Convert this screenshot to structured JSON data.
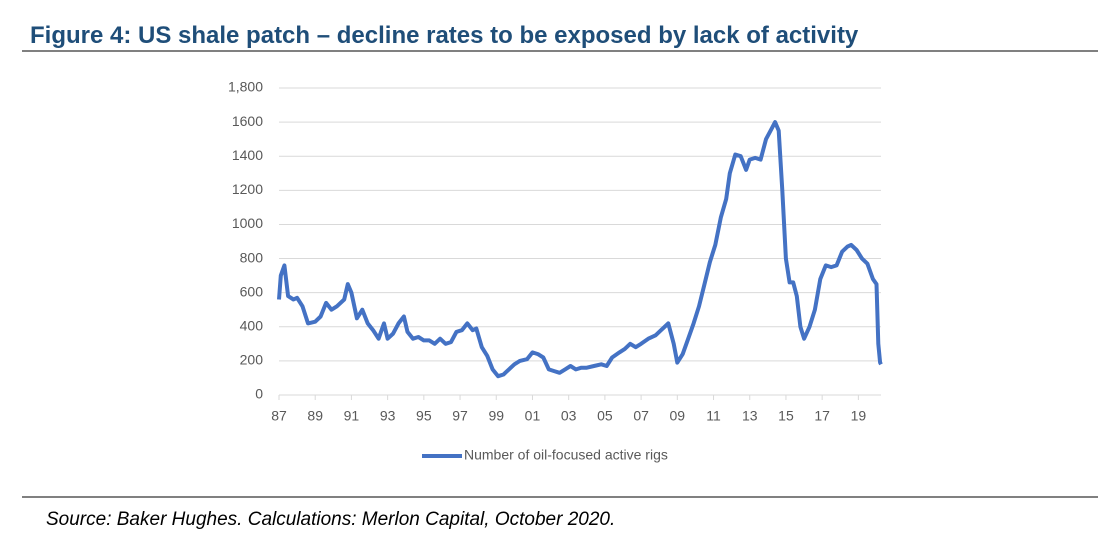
{
  "chart_data": {
    "type": "line",
    "title": "Figure 4: US shale patch – decline rates to be exposed by lack of activity",
    "source": "Source: Baker Hughes. Calculations: Merlon Capital, October 2020.",
    "xlim": [
      1987,
      2020.25
    ],
    "xticks": [
      {
        "value": 1987,
        "label": "87"
      },
      {
        "value": 1989,
        "label": "89"
      },
      {
        "value": 1991,
        "label": "91"
      },
      {
        "value": 1993,
        "label": "93"
      },
      {
        "value": 1995,
        "label": "95"
      },
      {
        "value": 1997,
        "label": "97"
      },
      {
        "value": 1999,
        "label": "99"
      },
      {
        "value": 2001,
        "label": "01"
      },
      {
        "value": 2003,
        "label": "03"
      },
      {
        "value": 2005,
        "label": "05"
      },
      {
        "value": 2007,
        "label": "07"
      },
      {
        "value": 2009,
        "label": "09"
      },
      {
        "value": 2011,
        "label": "11"
      },
      {
        "value": 2013,
        "label": "13"
      },
      {
        "value": 2015,
        "label": "15"
      },
      {
        "value": 2017,
        "label": "17"
      },
      {
        "value": 2019,
        "label": "19"
      }
    ],
    "ylim": [
      0,
      1800
    ],
    "yticks": [
      0,
      200,
      400,
      600,
      800,
      1000,
      1200,
      1400,
      1600,
      {
        "value": 1800,
        "label": "1,800"
      }
    ],
    "grid": true,
    "legend": "bottom",
    "x": [
      1987.0,
      1987.1,
      1987.3,
      1987.5,
      1987.8,
      1988.0,
      1988.3,
      1988.6,
      1989.0,
      1989.3,
      1989.6,
      1989.9,
      1990.2,
      1990.6,
      1990.8,
      1991.0,
      1991.3,
      1991.6,
      1991.9,
      1992.2,
      1992.5,
      1992.8,
      1993.0,
      1993.3,
      1993.6,
      1993.9,
      1994.1,
      1994.4,
      1994.7,
      1995.0,
      1995.3,
      1995.6,
      1995.9,
      1996.2,
      1996.5,
      1996.8,
      1997.1,
      1997.4,
      1997.7,
      1997.9,
      1998.2,
      1998.5,
      1998.8,
      1999.1,
      1999.4,
      1999.7,
      2000.0,
      2000.3,
      2000.7,
      2001.0,
      2001.3,
      2001.6,
      2001.9,
      2002.2,
      2002.5,
      2002.8,
      2003.1,
      2003.4,
      2003.7,
      2004.0,
      2004.4,
      2004.8,
      2005.1,
      2005.4,
      2005.8,
      2006.1,
      2006.4,
      2006.7,
      2007.0,
      2007.4,
      2007.8,
      2008.1,
      2008.5,
      2008.8,
      2009.0,
      2009.3,
      2009.6,
      2009.9,
      2010.2,
      2010.5,
      2010.8,
      2011.1,
      2011.4,
      2011.7,
      2011.9,
      2012.2,
      2012.5,
      2012.8,
      2013.0,
      2013.3,
      2013.6,
      2013.9,
      2014.2,
      2014.4,
      2014.6,
      2014.8,
      2015.0,
      2015.2,
      2015.4,
      2015.6,
      2015.8,
      2016.0,
      2016.3,
      2016.6,
      2016.9,
      2017.2,
      2017.5,
      2017.8,
      2018.1,
      2018.4,
      2018.6,
      2018.9,
      2019.2,
      2019.5,
      2019.8,
      2020.0,
      2020.1,
      2020.2,
      2020.25
    ],
    "series": [
      {
        "name": "Number of oil-focused active rigs",
        "color": "#4472c4",
        "values": [
          560,
          700,
          760,
          580,
          560,
          570,
          520,
          420,
          430,
          460,
          540,
          500,
          520,
          560,
          650,
          600,
          450,
          500,
          420,
          380,
          330,
          420,
          330,
          360,
          420,
          460,
          370,
          330,
          340,
          320,
          320,
          300,
          330,
          300,
          310,
          370,
          380,
          420,
          380,
          390,
          280,
          230,
          150,
          110,
          120,
          150,
          180,
          200,
          210,
          250,
          240,
          220,
          150,
          140,
          130,
          150,
          170,
          150,
          160,
          160,
          170,
          180,
          170,
          220,
          250,
          270,
          300,
          280,
          300,
          330,
          350,
          380,
          420,
          300,
          190,
          240,
          330,
          420,
          520,
          650,
          780,
          880,
          1040,
          1150,
          1300,
          1410,
          1400,
          1320,
          1380,
          1390,
          1380,
          1500,
          1560,
          1600,
          1550,
          1200,
          800,
          660,
          660,
          580,
          400,
          330,
          400,
          500,
          680,
          760,
          750,
          760,
          840,
          870,
          880,
          850,
          800,
          770,
          680,
          650,
          300,
          190,
          180
        ]
      }
    ]
  }
}
